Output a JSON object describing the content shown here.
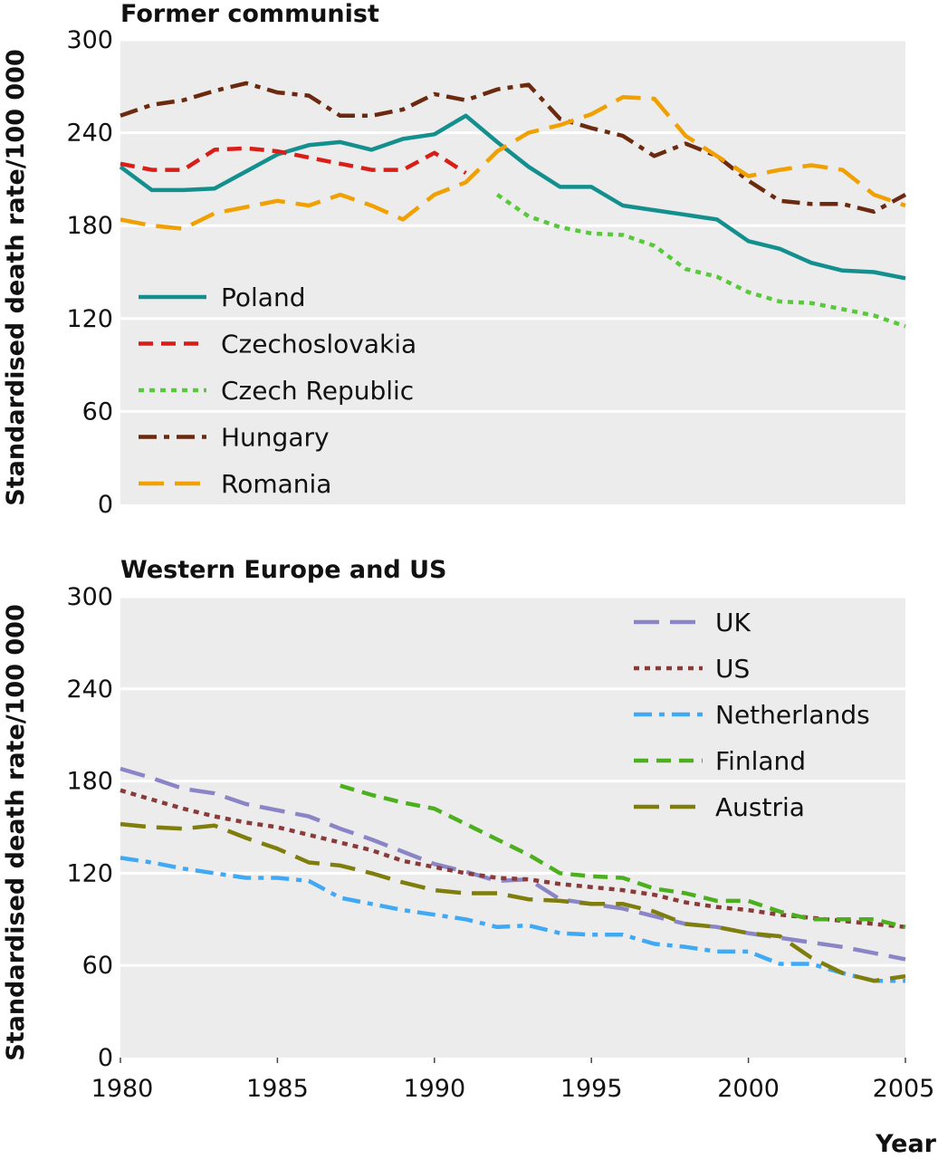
{
  "chart_data": [
    {
      "type": "line",
      "title": "Former communist",
      "ylabel": "Standardised death rate/100 000",
      "xlabel": "",
      "xlim": [
        1980,
        2005
      ],
      "ylim": [
        0,
        300
      ],
      "yticks": [
        0,
        60,
        120,
        180,
        240,
        300
      ],
      "xticks": [],
      "grid": "horizontal",
      "legend_position": "left",
      "series": [
        {
          "name": "Poland",
          "color": "#13908e",
          "style": "solid",
          "x": [
            1980,
            1981,
            1982,
            1983,
            1984,
            1985,
            1986,
            1987,
            1988,
            1989,
            1990,
            1991,
            1992,
            1993,
            1994,
            1995,
            1996,
            1997,
            1998,
            1999,
            2000,
            2001,
            2002,
            2003,
            2004,
            2005
          ],
          "y": [
            218,
            203,
            203,
            204,
            215,
            226,
            232,
            234,
            229,
            236,
            239,
            251,
            234,
            218,
            205,
            205,
            193,
            190,
            187,
            184,
            170,
            165,
            156,
            151,
            150,
            146
          ]
        },
        {
          "name": "Czechoslovakia",
          "color": "#d91e18",
          "style": "dashed",
          "x": [
            1980,
            1981,
            1982,
            1983,
            1984,
            1985,
            1986,
            1987,
            1988,
            1989,
            1990,
            1991
          ],
          "y": [
            220,
            216,
            216,
            229,
            230,
            228,
            224,
            220,
            216,
            216,
            227,
            214
          ]
        },
        {
          "name": "Czech Republic",
          "color": "#58c93a",
          "style": "dotted",
          "x": [
            1992,
            1993,
            1994,
            1995,
            1996,
            1997,
            1998,
            1999,
            2000,
            2001,
            2002,
            2003,
            2004,
            2005
          ],
          "y": [
            200,
            186,
            179,
            175,
            174,
            167,
            152,
            147,
            137,
            131,
            130,
            126,
            122,
            115
          ]
        },
        {
          "name": "Hungary",
          "color": "#6b2a0f",
          "style": "dashdot",
          "x": [
            1980,
            1981,
            1982,
            1983,
            1984,
            1985,
            1986,
            1987,
            1988,
            1989,
            1990,
            1991,
            1992,
            1993,
            1994,
            1995,
            1996,
            1997,
            1998,
            1999,
            2000,
            2001,
            2002,
            2003,
            2004,
            2005
          ],
          "y": [
            251,
            258,
            261,
            267,
            272,
            266,
            264,
            251,
            251,
            255,
            265,
            261,
            268,
            271,
            249,
            243,
            238,
            225,
            233,
            225,
            209,
            196,
            194,
            194,
            189,
            200
          ]
        },
        {
          "name": "Romania",
          "color": "#f0a000",
          "style": "longdash",
          "x": [
            1980,
            1981,
            1982,
            1983,
            1984,
            1985,
            1986,
            1987,
            1988,
            1989,
            1990,
            1991,
            1992,
            1993,
            1994,
            1995,
            1996,
            1997,
            1998,
            1999,
            2000,
            2001,
            2002,
            2003,
            2004,
            2005
          ],
          "y": [
            184,
            180,
            178,
            188,
            192,
            196,
            193,
            200,
            193,
            184,
            200,
            208,
            228,
            240,
            245,
            252,
            263,
            262,
            238,
            225,
            212,
            216,
            219,
            216,
            200,
            193
          ]
        }
      ]
    },
    {
      "type": "line",
      "title": "Western Europe and US",
      "ylabel": "Standardised death rate/100 000",
      "xlabel": "Year",
      "xlim": [
        1980,
        2005
      ],
      "ylim": [
        0,
        300
      ],
      "yticks": [
        0,
        60,
        120,
        180,
        240,
        300
      ],
      "xticks": [
        1980,
        1985,
        1990,
        1995,
        2000,
        2005
      ],
      "grid": "horizontal",
      "legend_position": "top-right",
      "series": [
        {
          "name": "UK",
          "color": "#8a85c6",
          "style": "longdash",
          "x": [
            1980,
            1981,
            1982,
            1983,
            1984,
            1985,
            1986,
            1987,
            1988,
            1989,
            1990,
            1991,
            1992,
            1993,
            1994,
            1995,
            1996,
            1997,
            1998,
            1999,
            2000,
            2001,
            2002,
            2003,
            2004,
            2005
          ],
          "y": [
            188,
            182,
            175,
            172,
            165,
            161,
            157,
            149,
            142,
            134,
            126,
            121,
            115,
            116,
            103,
            100,
            97,
            92,
            87,
            85,
            81,
            78,
            75,
            72,
            68,
            64
          ]
        },
        {
          "name": "US",
          "color": "#8b3a3a",
          "style": "dotted",
          "x": [
            1980,
            1981,
            1982,
            1983,
            1984,
            1985,
            1986,
            1987,
            1988,
            1989,
            1990,
            1991,
            1992,
            1993,
            1994,
            1995,
            1996,
            1997,
            1998,
            1999,
            2000,
            2001,
            2002,
            2003,
            2004,
            2005
          ],
          "y": [
            174,
            168,
            162,
            157,
            153,
            150,
            145,
            140,
            135,
            128,
            124,
            120,
            117,
            116,
            113,
            111,
            109,
            106,
            101,
            98,
            96,
            93,
            91,
            89,
            87,
            85
          ]
        },
        {
          "name": "Netherlands",
          "color": "#3fa9f5",
          "style": "dashdot",
          "x": [
            1980,
            1981,
            1982,
            1983,
            1984,
            1985,
            1986,
            1987,
            1988,
            1989,
            1990,
            1991,
            1992,
            1993,
            1994,
            1995,
            1996,
            1997,
            1998,
            1999,
            2000,
            2001,
            2002,
            2003,
            2004,
            2005
          ],
          "y": [
            130,
            127,
            123,
            120,
            117,
            117,
            115,
            104,
            100,
            96,
            93,
            90,
            85,
            86,
            81,
            80,
            80,
            74,
            72,
            69,
            69,
            61,
            61,
            55,
            50,
            50
          ]
        },
        {
          "name": "Finland",
          "color": "#4caf1e",
          "style": "dashed",
          "x": [
            1987,
            1988,
            1989,
            1990,
            1991,
            1992,
            1993,
            1994,
            1995,
            1996,
            1997,
            1998,
            1999,
            2000,
            2001,
            2002,
            2003,
            2004,
            2005
          ],
          "y": [
            177,
            171,
            166,
            162,
            152,
            142,
            132,
            120,
            118,
            117,
            110,
            107,
            102,
            102,
            95,
            90,
            90,
            90,
            85
          ]
        },
        {
          "name": "Austria",
          "color": "#7f7d0c",
          "style": "longdash",
          "x": [
            1980,
            1981,
            1982,
            1983,
            1984,
            1985,
            1986,
            1987,
            1988,
            1989,
            1990,
            1991,
            1992,
            1993,
            1994,
            1995,
            1996,
            1997,
            1998,
            1999,
            2000,
            2001,
            2002,
            2003,
            2004,
            2005
          ],
          "y": [
            152,
            150,
            149,
            151,
            143,
            136,
            127,
            125,
            120,
            114,
            109,
            107,
            107,
            103,
            102,
            100,
            100,
            95,
            87,
            85,
            81,
            79,
            65,
            55,
            50,
            53
          ]
        }
      ]
    }
  ]
}
